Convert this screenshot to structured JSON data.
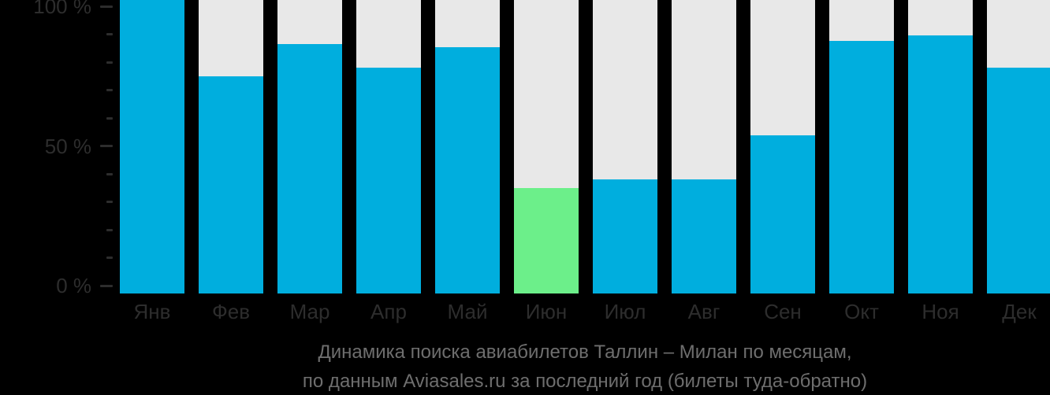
{
  "page": {
    "background_color": "#000000"
  },
  "chart_data": {
    "type": "bar",
    "title": "Динамика поиска авиабилетов Таллин – Милан по месяцам,",
    "subtitle": "по данным Aviasales.ru за последний год (билеты туда-обратно)",
    "categories": [
      "Янв",
      "Фев",
      "Мар",
      "Апр",
      "Май",
      "Июн",
      "Июл",
      "Авг",
      "Сен",
      "Окт",
      "Ноя",
      "Дек"
    ],
    "values": [
      100,
      74,
      85,
      77,
      84,
      36,
      39,
      39,
      54,
      86,
      88,
      77
    ],
    "unit": "%",
    "xlabel": "",
    "ylabel": "",
    "ylim": [
      0,
      100
    ],
    "yticks": [
      {
        "value": 100,
        "label": "100 %"
      },
      {
        "value": 50,
        "label": "50 %"
      },
      {
        "value": 0,
        "label": "0 %"
      }
    ],
    "minor_tick_step_percent": 10,
    "grid": false,
    "legend_position": "none",
    "bar_color": "#00aede",
    "highlight": {
      "category": "Июн",
      "color": "#6cef8a"
    },
    "column_background_color": "#e8e8e8",
    "axis_text_color": "#2d2d2d",
    "title_text_color": "#6e6e6e"
  }
}
